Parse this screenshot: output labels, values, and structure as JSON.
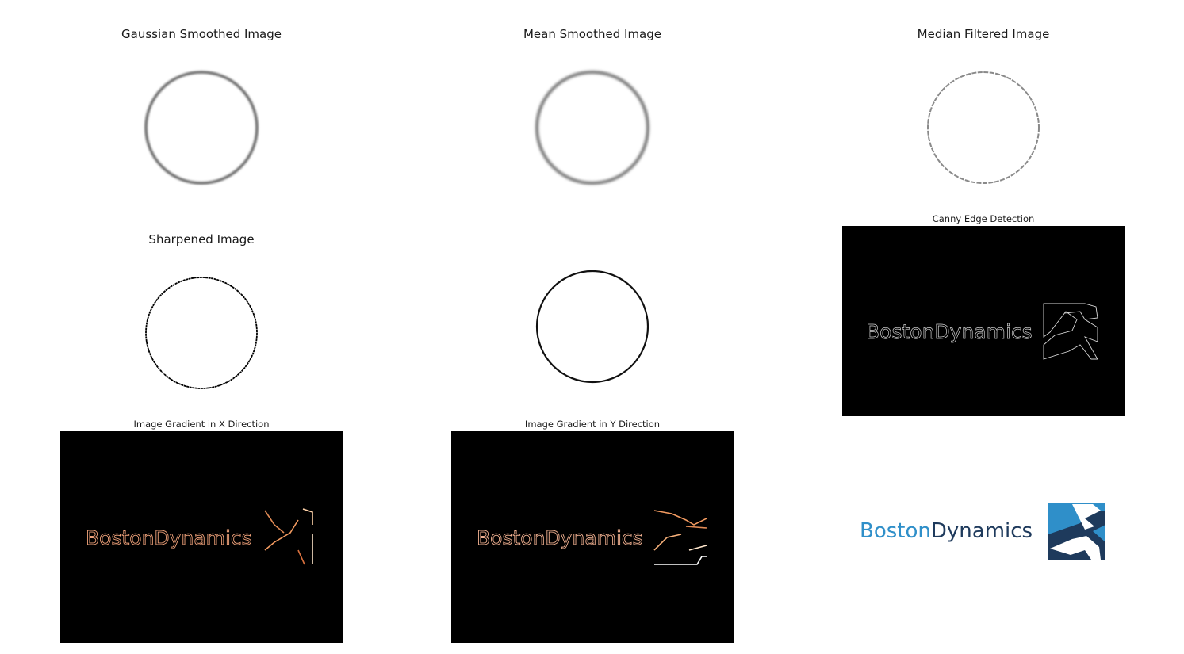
{
  "figure": {
    "panels": [
      {
        "title": "Gaussian Smoothed Image"
      },
      {
        "title": "Mean Smoothed Image"
      },
      {
        "title": "Median Filtered Image"
      },
      {
        "title": "Sharpened Image"
      },
      {
        "title": ""
      },
      {
        "title": "Canny Edge Detection"
      },
      {
        "title": "Image Gradient in X Direction"
      },
      {
        "title": "Image Gradient in Y Direction"
      },
      {
        "title": ""
      }
    ],
    "logo_text": [
      "Boston",
      "Dynamics"
    ]
  },
  "colors": {
    "background": "#ffffff",
    "dark_panel": "#000000",
    "logo_blue_light": "#2f8fc9",
    "logo_blue_dark": "#1e3a5c",
    "gradient_warm": "#f0a27a"
  }
}
